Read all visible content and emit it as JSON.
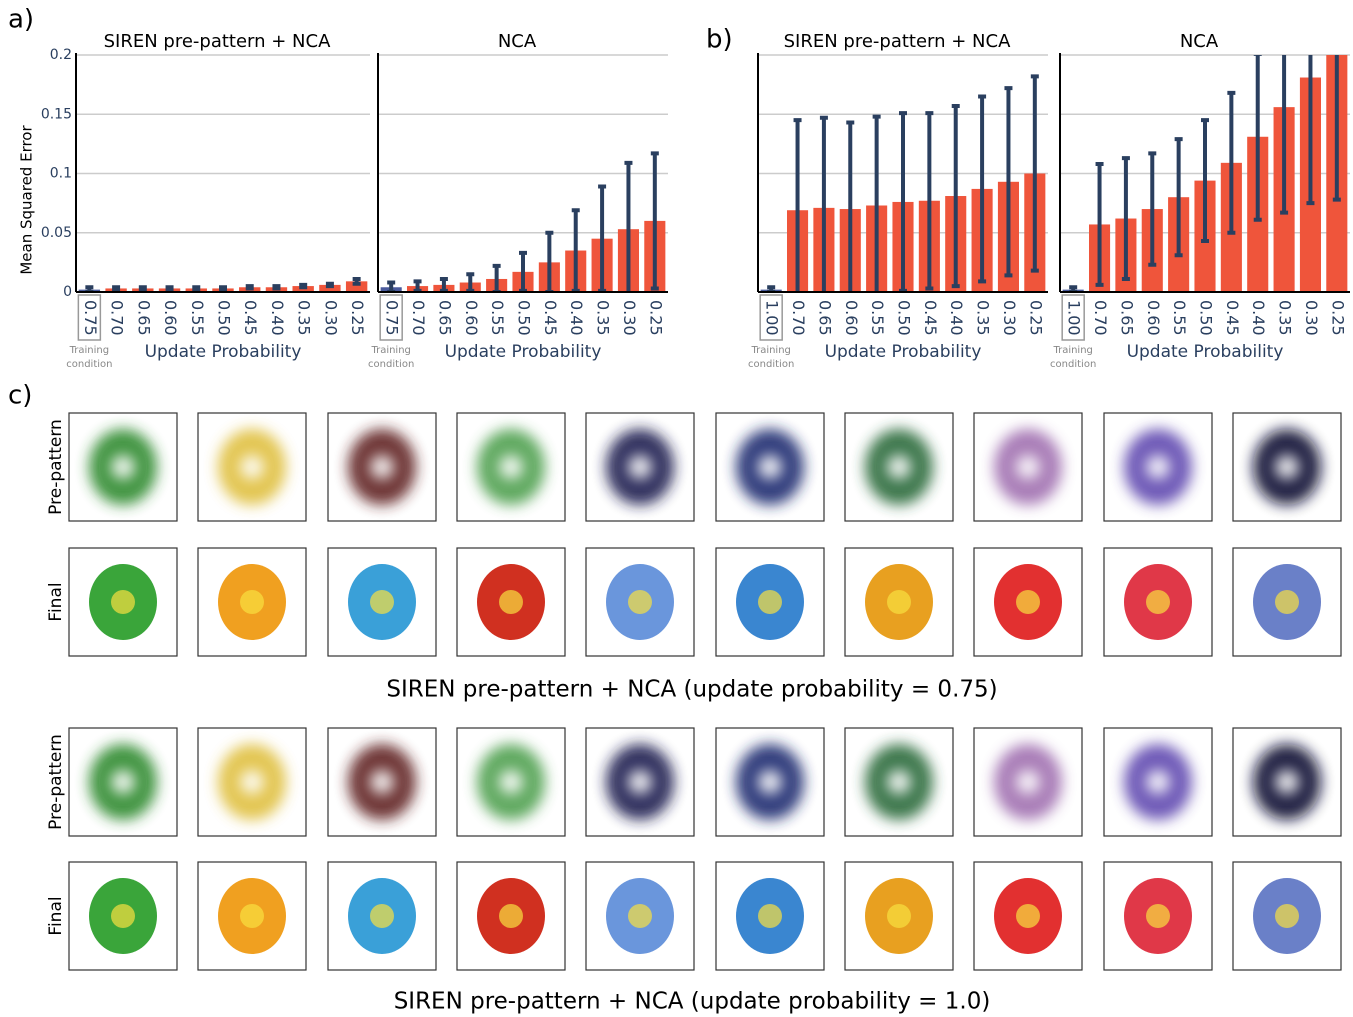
{
  "panel_labels": [
    "a)",
    "b)",
    "c)"
  ],
  "chart_data": [
    {
      "type": "bar",
      "title": "SIREN pre-pattern + NCA",
      "ylabel": "Mean Squared Error",
      "xlabel": "Update Probability",
      "annotation": "Training condition",
      "categories": [
        "0.75",
        "0.70",
        "0.65",
        "0.60",
        "0.55",
        "0.50",
        "0.45",
        "0.40",
        "0.35",
        "0.30",
        "0.25"
      ],
      "values": [
        0.002,
        0.003,
        0.003,
        0.003,
        0.003,
        0.003,
        0.004,
        0.004,
        0.005,
        0.006,
        0.009
      ],
      "errors": [
        0.002,
        0.001,
        0.001,
        0.001,
        0.001,
        0.001,
        0.001,
        0.001,
        0.001,
        0.001,
        0.002
      ],
      "colors": [
        "#4a5a9c",
        "#ef553b",
        "#ef553b",
        "#ef553b",
        "#ef553b",
        "#ef553b",
        "#ef553b",
        "#ef553b",
        "#ef553b",
        "#ef553b",
        "#ef553b"
      ],
      "error_color": "#2a3f5f",
      "ylim": [
        0,
        0.2
      ],
      "yticks": [
        0,
        0.05,
        0.1,
        0.15,
        0.2
      ],
      "show_ytick_labels": true,
      "grid": true
    },
    {
      "type": "bar",
      "title": "NCA",
      "xlabel": "Update Probability",
      "annotation": "Training condition",
      "categories": [
        "0.75",
        "0.70",
        "0.65",
        "0.60",
        "0.55",
        "0.50",
        "0.45",
        "0.40",
        "0.35",
        "0.30",
        "0.25"
      ],
      "values": [
        0.004,
        0.005,
        0.006,
        0.008,
        0.011,
        0.017,
        0.025,
        0.035,
        0.045,
        0.053,
        0.06
      ],
      "errors": [
        0.004,
        0.004,
        0.005,
        0.007,
        0.011,
        0.016,
        0.025,
        0.034,
        0.044,
        0.056,
        0.057
      ],
      "colors": [
        "#4a5a9c",
        "#ef553b",
        "#ef553b",
        "#ef553b",
        "#ef553b",
        "#ef553b",
        "#ef553b",
        "#ef553b",
        "#ef553b",
        "#ef553b",
        "#ef553b"
      ],
      "error_color": "#2a3f5f",
      "ylim": [
        0,
        0.2
      ],
      "yticks": [
        0,
        0.05,
        0.1,
        0.15,
        0.2
      ],
      "show_ytick_labels": false,
      "grid": true
    },
    {
      "type": "bar",
      "title": "SIREN pre-pattern + NCA",
      "xlabel": "Update Probability",
      "annotation": "Training condition",
      "categories": [
        "1.00",
        "0.70",
        "0.65",
        "0.60",
        "0.55",
        "0.50",
        "0.45",
        "0.40",
        "0.35",
        "0.30",
        "0.25"
      ],
      "values": [
        0.002,
        0.069,
        0.071,
        0.07,
        0.073,
        0.076,
        0.077,
        0.081,
        0.087,
        0.093,
        0.1
      ],
      "errors": [
        0.002,
        0.076,
        0.076,
        0.073,
        0.075,
        0.075,
        0.074,
        0.076,
        0.078,
        0.079,
        0.082
      ],
      "colors": [
        "#4a5a9c",
        "#ef553b",
        "#ef553b",
        "#ef553b",
        "#ef553b",
        "#ef553b",
        "#ef553b",
        "#ef553b",
        "#ef553b",
        "#ef553b",
        "#ef553b"
      ],
      "error_color": "#2a3f5f",
      "ylim": [
        0,
        0.2
      ],
      "yticks": [
        0,
        0.05,
        0.1,
        0.15,
        0.2
      ],
      "show_ytick_labels": false,
      "grid": true
    },
    {
      "type": "bar",
      "title": "NCA",
      "xlabel": "Update Probability",
      "annotation": "Training condition",
      "categories": [
        "1.00",
        "0.70",
        "0.65",
        "0.60",
        "0.55",
        "0.50",
        "0.45",
        "0.40",
        "0.35",
        "0.30",
        "0.25"
      ],
      "values": [
        0.002,
        0.057,
        0.062,
        0.07,
        0.08,
        0.094,
        0.109,
        0.131,
        0.156,
        0.181,
        0.2
      ],
      "errors": [
        0.002,
        0.051,
        0.051,
        0.047,
        0.049,
        0.051,
        0.059,
        0.07,
        0.089,
        0.106,
        0.122
      ],
      "colors": [
        "#4a5a9c",
        "#ef553b",
        "#ef553b",
        "#ef553b",
        "#ef553b",
        "#ef553b",
        "#ef553b",
        "#ef553b",
        "#ef553b",
        "#ef553b",
        "#ef553b"
      ],
      "error_color": "#2a3f5f",
      "ylim": [
        0,
        0.2
      ],
      "yticks": [
        0,
        0.05,
        0.1,
        0.15,
        0.2
      ],
      "show_ytick_labels": false,
      "grid": true
    }
  ],
  "panel_c": {
    "groups": [
      {
        "row_labels": [
          "Pre-pattern",
          "Final"
        ],
        "caption": "SIREN pre-pattern + NCA (update probability = 0.75)"
      },
      {
        "row_labels": [
          "Pre-pattern",
          "Final"
        ],
        "caption": "SIREN pre-pattern + NCA (update probability = 1.0)"
      }
    ]
  }
}
